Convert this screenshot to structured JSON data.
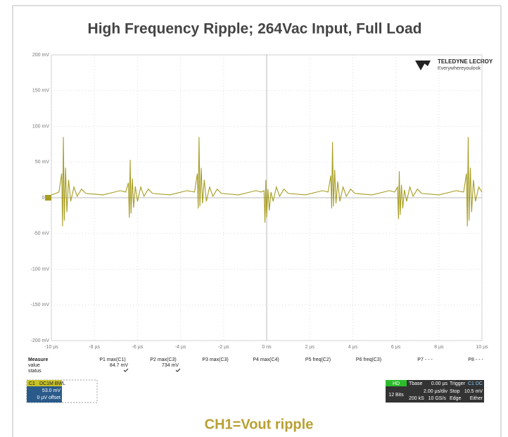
{
  "chart_data": {
    "type": "line",
    "title": "High Frequency Ripple; 264Vac Input, Full Load",
    "caption": "CH1=Vout ripple",
    "color": "#a69d22",
    "grid": true,
    "xlim": [
      -10,
      10
    ],
    "ylim": [
      -200,
      200
    ],
    "xticks": [
      {
        "value": -10,
        "label": "-10 µs"
      },
      {
        "value": -8,
        "label": "-8 µs"
      },
      {
        "value": -6,
        "label": "-6 µs"
      },
      {
        "value": -4,
        "label": "-4 µs"
      },
      {
        "value": -2,
        "label": "-2 µs"
      },
      {
        "value": 0,
        "label": "0 ns"
      },
      {
        "value": 2,
        "label": "2 µs"
      },
      {
        "value": 4,
        "label": "4 µs"
      },
      {
        "value": 6,
        "label": "6 µs"
      },
      {
        "value": 8,
        "label": "8 µs"
      },
      {
        "value": 10,
        "label": "10 µs"
      }
    ],
    "yticks": [
      {
        "value": 200,
        "label": "200 mV"
      },
      {
        "value": 150,
        "label": "150 mV"
      },
      {
        "value": 100,
        "label": "100 mV"
      },
      {
        "value": 50,
        "label": "50 mV"
      },
      {
        "value": 0,
        "label": "0 V"
      },
      {
        "value": -50,
        "label": "-50 mV"
      },
      {
        "value": -100,
        "label": "-100 mV"
      },
      {
        "value": -150,
        "label": "-150 mV"
      },
      {
        "value": -200,
        "label": "-200 mV"
      }
    ],
    "x": [
      -10,
      -9.8,
      -9.65,
      -9.52,
      -9.48,
      -9.44,
      -9.4,
      -9.34,
      -9.28,
      -9.2,
      -9.1,
      -8.95,
      -8.8,
      -8.6,
      -8.4,
      -7.6,
      -6.8,
      -6.55,
      -6.42,
      -6.38,
      -6.34,
      -6.3,
      -6.24,
      -6.18,
      -6.1,
      -6.0,
      -5.85,
      -5.7,
      -5.5,
      -5.3,
      -4.5,
      -3.7,
      -3.35,
      -3.22,
      -3.18,
      -3.14,
      -3.1,
      -3.04,
      -2.98,
      -2.9,
      -2.8,
      -2.65,
      -2.5,
      -2.3,
      -2.1,
      -1.3,
      -0.5,
      -0.25,
      -0.12,
      -0.08,
      -0.04,
      0,
      0.06,
      0.12,
      0.2,
      0.3,
      0.45,
      0.6,
      0.8,
      1.0,
      1.8,
      2.6,
      2.85,
      2.98,
      3.02,
      3.06,
      3.1,
      3.16,
      3.22,
      3.3,
      3.4,
      3.55,
      3.7,
      3.9,
      4.1,
      4.9,
      5.7,
      5.95,
      6.08,
      6.12,
      6.16,
      6.2,
      6.26,
      6.32,
      6.4,
      6.5,
      6.65,
      6.8,
      7.0,
      7.2,
      8.0,
      8.8,
      9.15,
      9.28,
      9.32,
      9.36,
      9.4,
      9.46,
      9.52,
      9.6,
      9.7,
      9.85,
      10
    ],
    "values": [
      4,
      6,
      8,
      34,
      -40,
      85,
      -32,
      42,
      -20,
      25,
      -5,
      15,
      2,
      12,
      6,
      4,
      10,
      8,
      21,
      -28,
      53,
      -22,
      27,
      -14,
      16,
      -5,
      15,
      2,
      12,
      6,
      4,
      10,
      8,
      34,
      -15,
      85,
      -12,
      42,
      -8,
      25,
      -5,
      15,
      2,
      12,
      6,
      4,
      10,
      8,
      10,
      -35,
      25,
      -28,
      12,
      -18,
      8,
      -5,
      15,
      2,
      12,
      6,
      4,
      10,
      8,
      31,
      -15,
      78,
      -12,
      39,
      -8,
      23,
      -5,
      15,
      2,
      12,
      6,
      4,
      10,
      8,
      15,
      -30,
      37,
      -24,
      18,
      -15,
      11,
      -5,
      15,
      2,
      12,
      6,
      4,
      10,
      8,
      34,
      -40,
      85,
      -32,
      42,
      -20,
      25,
      -5,
      15,
      8
    ],
    "logo": {
      "brand": "TELEDYNE LECROY",
      "tagline": "Everywhereyoulook"
    },
    "measure": {
      "label": "Measure",
      "headers": [
        "P1 max(C1)",
        "P2 max(C3)",
        "P3 max(C3)",
        "P4 max(C4)",
        "P5 freq(C2)",
        "P6 freq(C3)",
        "P7 - - -",
        "P8 - - -"
      ],
      "value_label": "value",
      "values": [
        "84.7 mV",
        "734 mV"
      ],
      "status_label": "status"
    },
    "channel": {
      "name": "C1",
      "flags": "DC1M BWL",
      "scale": "53.0 mV",
      "offset": "0 µV offset"
    },
    "timebase": {
      "hd": "HD",
      "bits": "12 Bits",
      "tbase": "Tbase",
      "delay": "0.00 µs",
      "div": "2.00 µs/div",
      "rate": "200 kS   10 GS/s",
      "trigger": "Trigger",
      "trig_ch": "C1 DC",
      "mode": "Stop",
      "level": "10.5 mV",
      "type": "Edge",
      "slope": "Either"
    }
  }
}
